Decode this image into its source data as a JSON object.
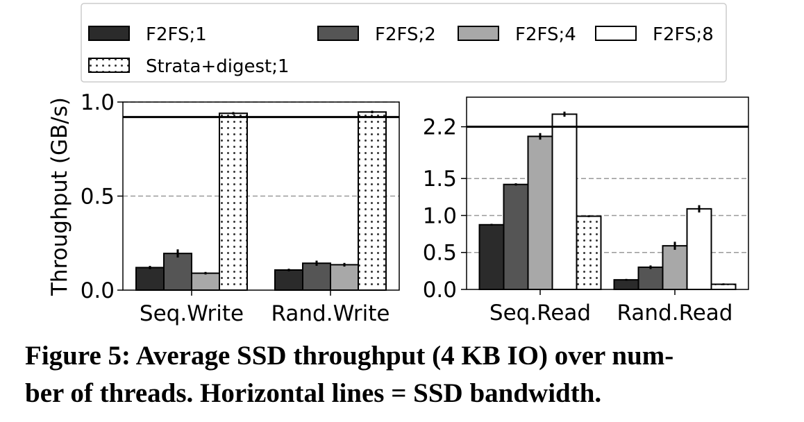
{
  "legend": {
    "entries": [
      {
        "label": "F2FS;1",
        "color": "#2b2b2b",
        "pattern": "solid"
      },
      {
        "label": "F2FS;2",
        "color": "#555555",
        "pattern": "solid"
      },
      {
        "label": "F2FS;4",
        "color": "#a8a8a8",
        "pattern": "solid"
      },
      {
        "label": "F2FS;8",
        "color": "#ffffff",
        "pattern": "solid"
      },
      {
        "label": "Strata+digest;1",
        "color": "#ffffff",
        "pattern": "dots"
      }
    ]
  },
  "chart_data": [
    {
      "type": "bar",
      "ylabel": "Throughput (GB/s)",
      "ylim": [
        0,
        1.0
      ],
      "yticks": [
        "0.0",
        "0.5",
        "1.0"
      ],
      "ytick_values": [
        0,
        0.5,
        1.0
      ],
      "grid": "dashed at 0.5",
      "bandwidth_line": 0.92,
      "categories": [
        "Seq.Write",
        "Rand.Write"
      ],
      "series": [
        {
          "name": "F2FS;1",
          "values": [
            0.12,
            0.107
          ],
          "errors": [
            0.005,
            0.003
          ]
        },
        {
          "name": "F2FS;2",
          "values": [
            0.195,
            0.143
          ],
          "errors": [
            0.018,
            0.01
          ]
        },
        {
          "name": "F2FS;4",
          "values": [
            0.09,
            0.135
          ],
          "errors": [
            0.003,
            0.006
          ]
        },
        {
          "name": "F2FS;8",
          "values": [
            null,
            null
          ],
          "errors": [
            null,
            null
          ]
        },
        {
          "name": "Strata+digest;1",
          "values": [
            0.94,
            0.947
          ],
          "errors": [
            0.003,
            0.003
          ]
        }
      ]
    },
    {
      "type": "bar",
      "ylabel": "",
      "ylim": [
        0,
        2.6
      ],
      "yticks": [
        "0.0",
        "0.5",
        "1.0",
        "1.5",
        "2.2"
      ],
      "ytick_values": [
        0,
        0.5,
        1.0,
        1.5,
        2.2
      ],
      "grid": "dashed at 0.5, 1.0, 1.5",
      "bandwidth_line": 2.2,
      "categories": [
        "Seq.Read",
        "Rand.Read"
      ],
      "series": [
        {
          "name": "F2FS;1",
          "values": [
            0.875,
            0.13
          ],
          "errors": [
            0.003,
            0.003
          ]
        },
        {
          "name": "F2FS;2",
          "values": [
            1.42,
            0.3
          ],
          "errors": [
            0.006,
            0.015
          ]
        },
        {
          "name": "F2FS;4",
          "values": [
            2.07,
            0.59
          ],
          "errors": [
            0.035,
            0.045
          ]
        },
        {
          "name": "F2FS;8",
          "values": [
            2.37,
            1.09
          ],
          "errors": [
            0.025,
            0.04
          ]
        },
        {
          "name": "Strata+digest;1",
          "values": [
            0.99,
            0.07
          ],
          "errors": [
            0.003,
            0.003
          ]
        }
      ]
    }
  ],
  "caption": {
    "line1": "Figure 5: Average SSD throughput (4 KB IO) over num-",
    "line2": "ber of threads. Horizontal lines = SSD bandwidth."
  }
}
